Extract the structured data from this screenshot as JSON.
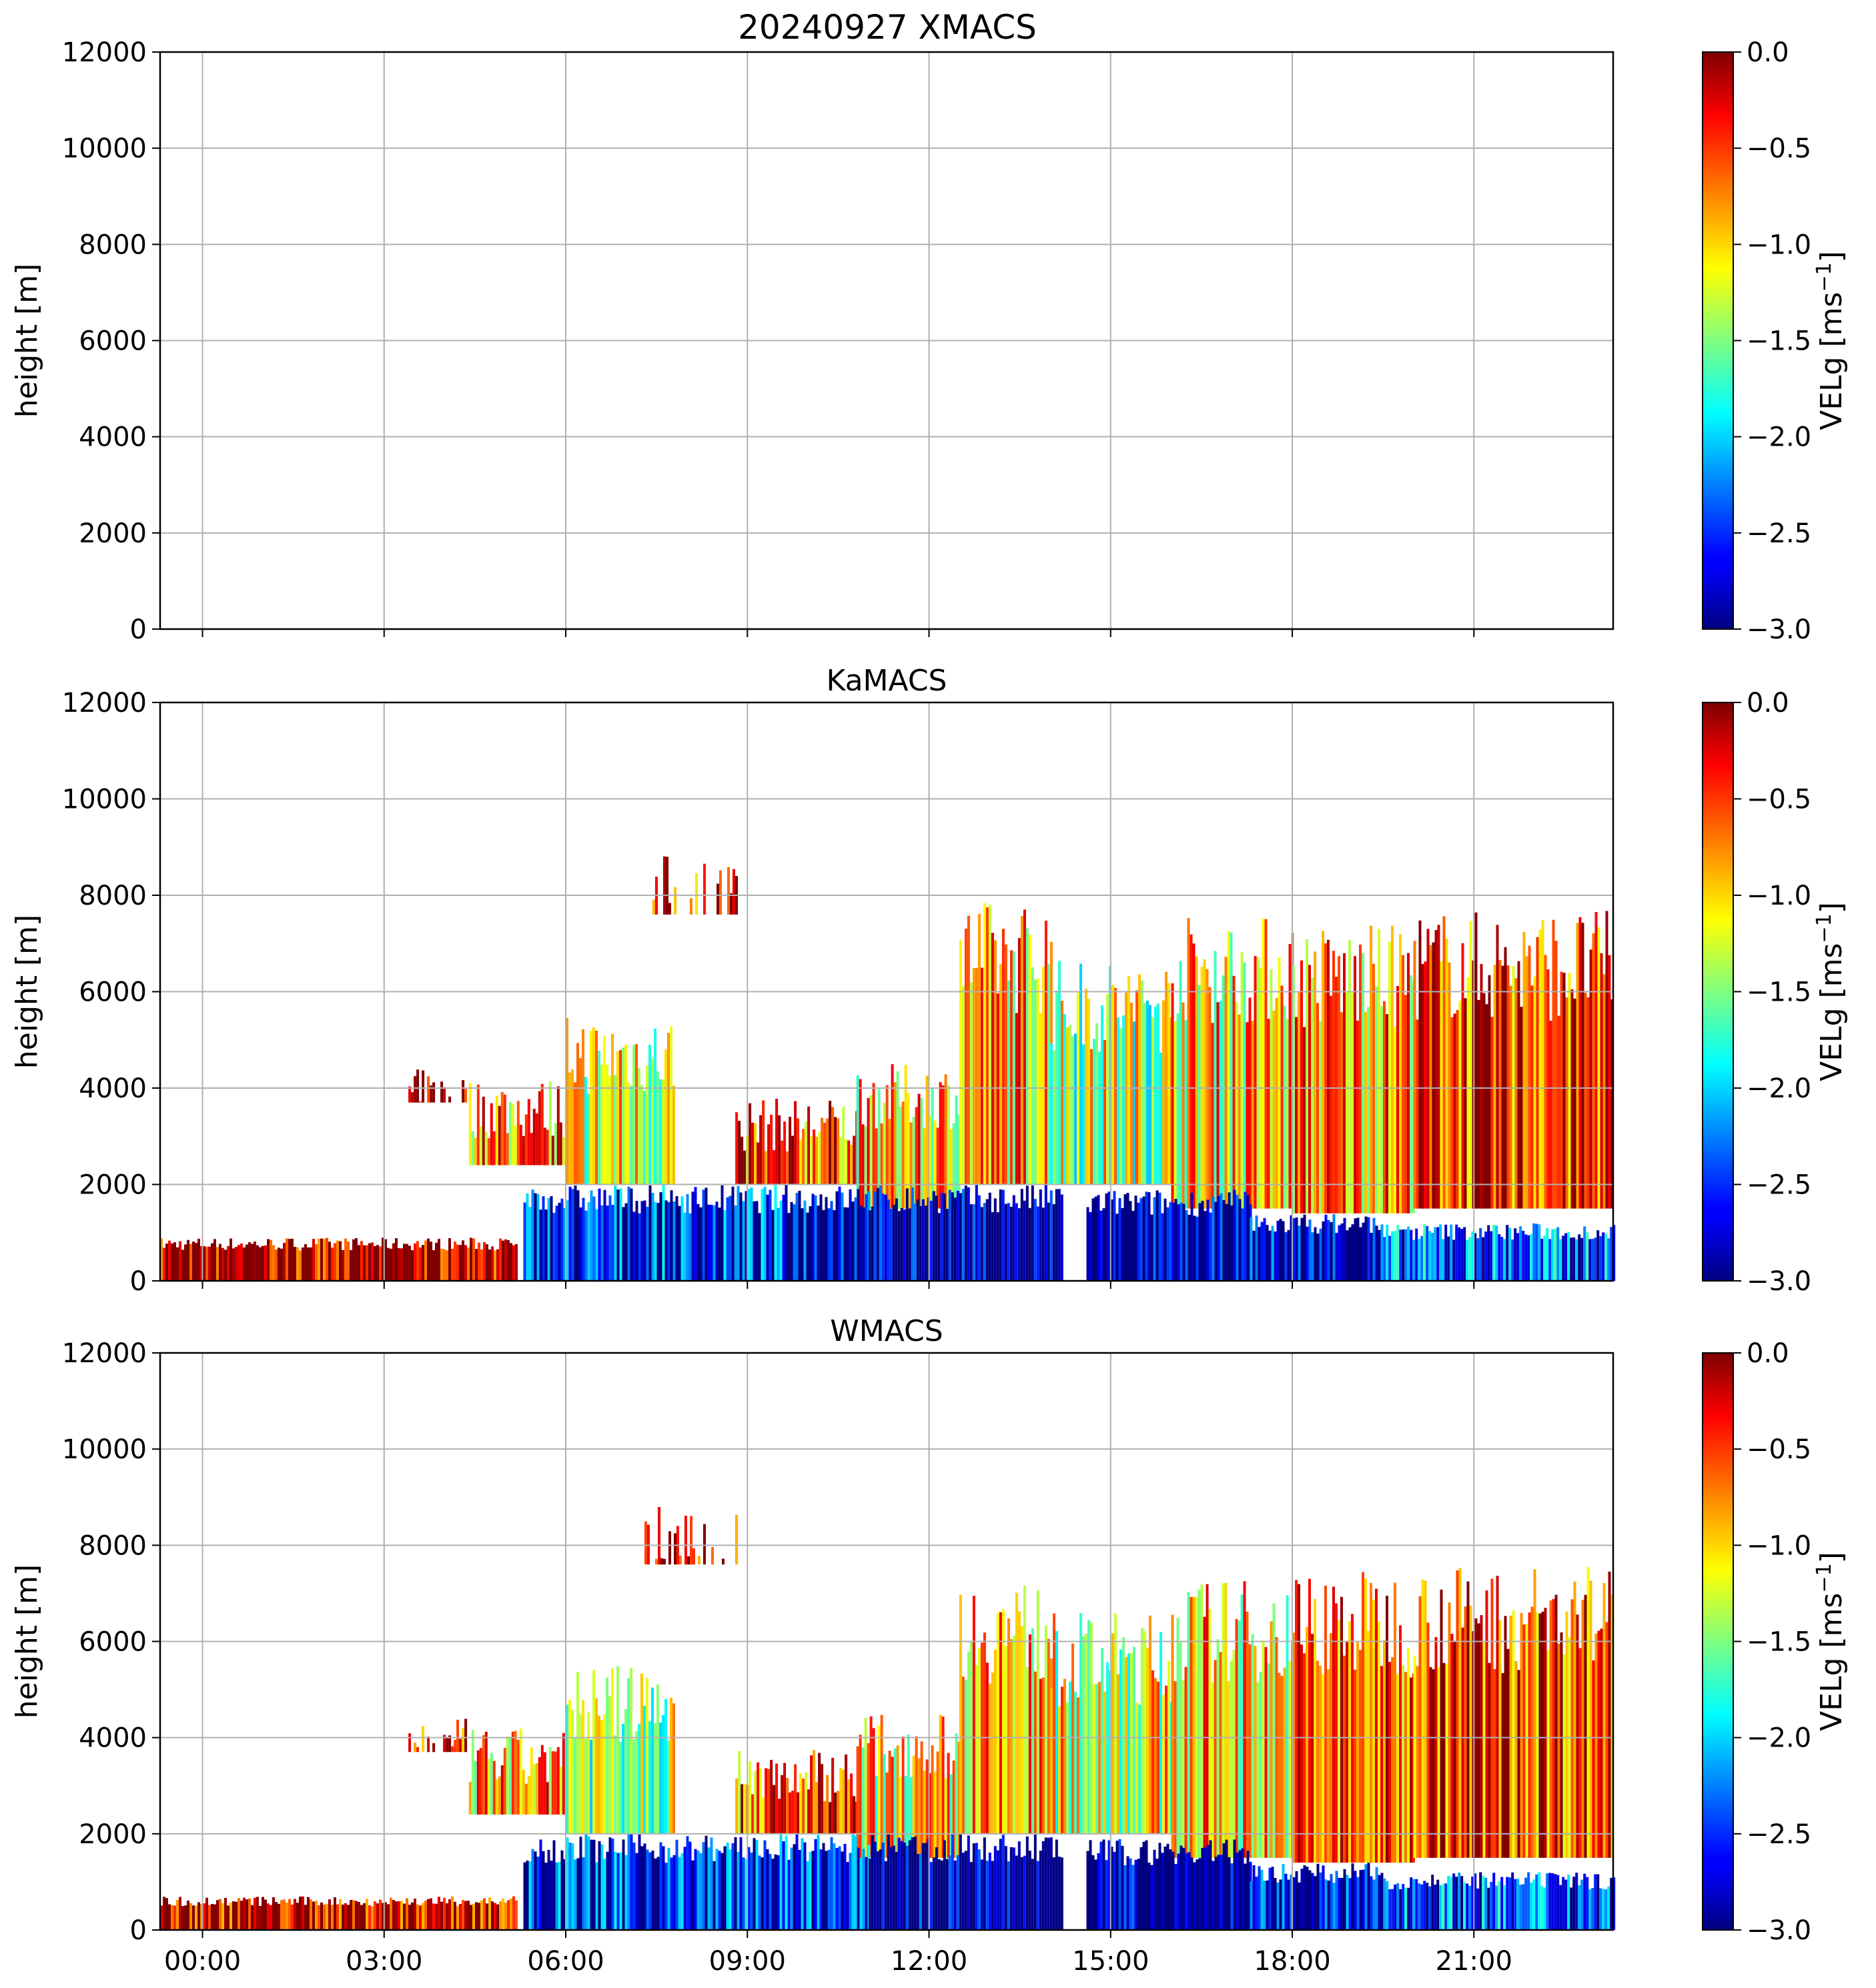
{
  "figure": {
    "suptitle": "20240927 XMACS"
  },
  "chart_data": [
    {
      "type": "heatmap",
      "title": "20240927 XMACS",
      "ylabel": "height [m]",
      "xlabel": "",
      "x_range_hours": [
        -0.7,
        23.3
      ],
      "ylim": [
        0,
        12000
      ],
      "yticks": [
        0,
        2000,
        4000,
        6000,
        8000,
        10000,
        12000
      ],
      "xticks": [],
      "grid": true,
      "colorbar": {
        "label": "VELg [ms",
        "label_sup": "−1",
        "label_end": "]",
        "range": [
          -3.0,
          0.0
        ],
        "ticks": [
          "0.0",
          "−0.5",
          "−1.0",
          "−1.5",
          "−2.0",
          "−2.5",
          "−3.0"
        ],
        "colormap": "jet"
      },
      "echoes": []
    },
    {
      "type": "heatmap",
      "title": "KaMACS",
      "ylabel": "height [m]",
      "xlabel": "",
      "x_range_hours": [
        -0.7,
        23.3
      ],
      "ylim": [
        0,
        12000
      ],
      "yticks": [
        0,
        2000,
        4000,
        6000,
        8000,
        10000,
        12000
      ],
      "xticks": [],
      "grid": true,
      "colorbar": {
        "label": "VELg [ms",
        "label_sup": "−1",
        "label_end": "]",
        "range": [
          -3.0,
          0.0
        ],
        "ticks": [
          "0.0",
          "−0.5",
          "−1.0",
          "−1.5",
          "−2.0",
          "−2.5",
          "−3.0"
        ],
        "colormap": "jet"
      },
      "echoes": [
        {
          "t0": -0.7,
          "t1": 5.2,
          "h_top": 900,
          "h_bot": 0,
          "vel": -0.1
        },
        {
          "t0": 3.4,
          "t1": 4.4,
          "h_top": 4400,
          "h_bot": 3700,
          "vel": -0.4
        },
        {
          "t0": 4.4,
          "t1": 6.0,
          "h_top": 4200,
          "h_bot": 2400,
          "vel": -0.8
        },
        {
          "t0": 7.3,
          "t1": 8.8,
          "h_top": 8900,
          "h_bot": 7600,
          "vel": -0.3
        },
        {
          "t0": 6.0,
          "t1": 7.8,
          "h_top": 5500,
          "h_bot": 2000,
          "vel": -1.2
        },
        {
          "t0": 8.8,
          "t1": 10.8,
          "h_top": 3800,
          "h_bot": 2000,
          "vel": -0.6
        },
        {
          "t0": 10.8,
          "t1": 12.5,
          "h_top": 4500,
          "h_bot": 1500,
          "vel": -1.0
        },
        {
          "t0": 12.5,
          "t1": 14.0,
          "h_top": 7900,
          "h_bot": 2000,
          "vel": -0.9
        },
        {
          "t0": 14.0,
          "t1": 16.0,
          "h_top": 6700,
          "h_bot": 2000,
          "vel": -1.3
        },
        {
          "t0": 16.0,
          "t1": 18.0,
          "h_top": 7600,
          "h_bot": 1500,
          "vel": -1.0
        },
        {
          "t0": 18.0,
          "t1": 20.0,
          "h_top": 7400,
          "h_bot": 1400,
          "vel": -0.8
        },
        {
          "t0": 20.0,
          "t1": 23.3,
          "h_top": 7700,
          "h_bot": 1500,
          "vel": -0.5
        },
        {
          "t0": 5.3,
          "t1": 11.0,
          "h_top": 2000,
          "h_bot": 0,
          "vel": -2.6
        },
        {
          "t0": 11.0,
          "t1": 14.2,
          "h_top": 2000,
          "h_bot": 0,
          "vel": -3.0
        },
        {
          "t0": 14.6,
          "t1": 17.3,
          "h_top": 1900,
          "h_bot": 0,
          "vel": -3.0
        },
        {
          "t0": 17.3,
          "t1": 19.5,
          "h_top": 1400,
          "h_bot": 0,
          "vel": -2.8
        },
        {
          "t0": 19.5,
          "t1": 23.3,
          "h_top": 1200,
          "h_bot": 0,
          "vel": -2.4
        }
      ]
    },
    {
      "type": "heatmap",
      "title": "WMACS",
      "ylabel": "height [m]",
      "xlabel": "",
      "x_range_hours": [
        -0.7,
        23.3
      ],
      "ylim": [
        0,
        12000
      ],
      "yticks": [
        0,
        2000,
        4000,
        6000,
        8000,
        10000,
        12000
      ],
      "xticks": [
        "00:00",
        "03:00",
        "06:00",
        "09:00",
        "12:00",
        "15:00",
        "18:00",
        "21:00"
      ],
      "grid": true,
      "colorbar": {
        "label": "VELg [ms",
        "label_sup": "−1",
        "label_end": "]",
        "range": [
          -3.0,
          0.0
        ],
        "ticks": [
          "0.0",
          "−0.5",
          "−1.0",
          "−1.5",
          "−2.0",
          "−2.5",
          "−3.0"
        ],
        "colormap": "jet"
      },
      "echoes": [
        {
          "t0": -0.7,
          "t1": 5.2,
          "h_top": 700,
          "h_bot": 0,
          "vel": -0.2
        },
        {
          "t0": 3.4,
          "t1": 4.4,
          "h_top": 4400,
          "h_bot": 3700,
          "vel": -0.5
        },
        {
          "t0": 4.4,
          "t1": 6.0,
          "h_top": 4200,
          "h_bot": 2400,
          "vel": -0.9
        },
        {
          "t0": 7.3,
          "t1": 8.8,
          "h_top": 8900,
          "h_bot": 7600,
          "vel": -0.2
        },
        {
          "t0": 6.0,
          "t1": 7.8,
          "h_top": 5500,
          "h_bot": 2000,
          "vel": -1.3
        },
        {
          "t0": 8.8,
          "t1": 10.8,
          "h_top": 3800,
          "h_bot": 2000,
          "vel": -0.6
        },
        {
          "t0": 10.8,
          "t1": 12.5,
          "h_top": 4500,
          "h_bot": 1500,
          "vel": -1.1
        },
        {
          "t0": 12.5,
          "t1": 14.0,
          "h_top": 7300,
          "h_bot": 2000,
          "vel": -1.0
        },
        {
          "t0": 14.0,
          "t1": 16.0,
          "h_top": 6600,
          "h_bot": 2000,
          "vel": -1.2
        },
        {
          "t0": 16.0,
          "t1": 18.0,
          "h_top": 7300,
          "h_bot": 1500,
          "vel": -1.0
        },
        {
          "t0": 18.0,
          "t1": 20.0,
          "h_top": 7500,
          "h_bot": 1400,
          "vel": -0.7
        },
        {
          "t0": 20.0,
          "t1": 23.3,
          "h_top": 7600,
          "h_bot": 1500,
          "vel": -0.5
        },
        {
          "t0": 5.3,
          "t1": 11.0,
          "h_top": 2000,
          "h_bot": 0,
          "vel": -2.6
        },
        {
          "t0": 11.0,
          "t1": 14.2,
          "h_top": 2000,
          "h_bot": 0,
          "vel": -3.0
        },
        {
          "t0": 14.6,
          "t1": 17.3,
          "h_top": 1900,
          "h_bot": 0,
          "vel": -3.0
        },
        {
          "t0": 17.3,
          "t1": 19.5,
          "h_top": 1400,
          "h_bot": 0,
          "vel": -2.8
        },
        {
          "t0": 19.5,
          "t1": 23.3,
          "h_top": 1200,
          "h_bot": 0,
          "vel": -2.4
        }
      ]
    }
  ]
}
